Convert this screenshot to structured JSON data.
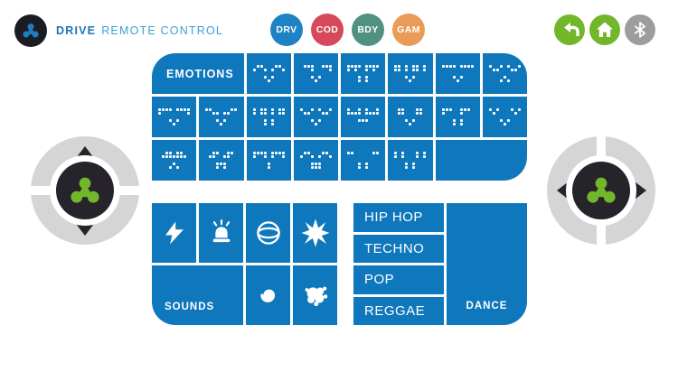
{
  "header": {
    "title_bold": "DRIVE",
    "title_rest": "REMOTE CONTROL"
  },
  "nav_tabs": [
    {
      "label": "DRV",
      "color": "#1e82c4"
    },
    {
      "label": "COD",
      "color": "#d5495a"
    },
    {
      "label": "BDY",
      "color": "#519180"
    },
    {
      "label": "GAM",
      "color": "#e99b57"
    }
  ],
  "system_buttons": [
    {
      "name": "back",
      "color": "#72b62a"
    },
    {
      "name": "home",
      "color": "#72b62a"
    },
    {
      "name": "bluetooth",
      "color": "#9d9d9c"
    }
  ],
  "joysticks": {
    "left": {
      "directions": [
        "up",
        "down"
      ]
    },
    "right": {
      "directions": [
        "left",
        "right"
      ]
    }
  },
  "emotions": {
    "label": "EMOTIONS",
    "tiles": [
      [
        ".##...##.",
        "#..#.#..#",
        ".........",
        "...#.#...",
        "....#...."
      ],
      [
        ".###..###",
        "...#....#",
        ".........",
        "...#.#...",
        "....#...."
      ],
      [
        "####.####",
        "#.#..#.#.",
        ".........",
        "...#.#...",
        "...#.#..."
      ],
      [
        "##.#.##.#",
        "##.#.##.#",
        ".........",
        "...#.#...",
        "....#...."
      ],
      [
        "####.####",
        ".........",
        ".........",
        "...#.#...",
        "....#...."
      ],
      [
        "#..#.#..#",
        ".##...##.",
        ".........",
        "....#....",
        "...#.#..."
      ],
      [
        "####.####",
        "#.......#",
        ".........",
        "...#.#...",
        "....#...."
      ],
      [
        "##.....##",
        "..##.##..",
        ".........",
        "...#.#...",
        "....#...."
      ],
      [
        "#.##.#.##",
        "#.##.#.##",
        ".........",
        "...#.#...",
        "...#.#..."
      ],
      [
        "#..#.#..#",
        ".##...##.",
        ".........",
        "...#.#...",
        "....#...."
      ],
      [
        "#..#.#..#",
        "####.####",
        ".........",
        "...###...",
        "........."
      ],
      [
        ".##...##.",
        ".##...##.",
        ".........",
        "...#.#...",
        "....#...."
      ],
      [
        "###..###.",
        "#....#...",
        ".........",
        "...#.#...",
        "...#.#..."
      ],
      [
        "#.#...#.#",
        ".#.....#.",
        ".........",
        "...#.#...",
        "....#...."
      ],
      [
        "..##.##..",
        ".#######.",
        ".........",
        "....#....",
        "...#.#..."
      ],
      [
        "..##..##.",
        ".##..##..",
        ".........",
        "...###...",
        "...#.#..."
      ],
      [
        "####.####",
        "#..#.#..#",
        ".........",
        "....#....",
        "....#...."
      ],
      [
        ".##...##.",
        "#..#.#..#",
        ".........",
        "...###...",
        "...###..."
      ],
      [
        "##.....##",
        ".........",
        ".........",
        "...#.#...",
        "...#.#..."
      ],
      [
        "#.#...#.#",
        "#.#...#.#",
        ".........",
        "...#.#...",
        "...#.#..."
      ]
    ]
  },
  "sounds": {
    "label": "SOUNDS",
    "items": [
      "lightning",
      "siren",
      "ball",
      "burst",
      "spiral",
      "splat"
    ]
  },
  "dance": {
    "label": "DANCE",
    "tracks": [
      "HIP HOP",
      "TECHNO",
      "POP",
      "REGGAE"
    ]
  },
  "colors": {
    "panel_blue": "#0f77bb",
    "dark": "#26232b",
    "dpad_gray": "#d6d5d5",
    "green": "#72b62a",
    "gray": "#9d9d9c",
    "title_blue": "#1b75bb",
    "title_light_blue": "#3da0d4",
    "logo_blue": "#1e7dbd"
  }
}
